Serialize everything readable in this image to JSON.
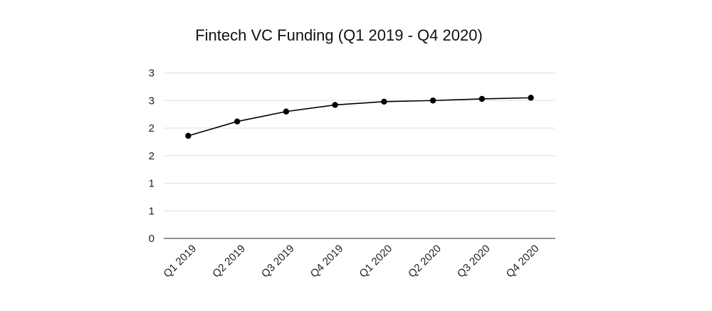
{
  "chart_data": {
    "type": "line",
    "title": "Fintech VC Funding (Q1 2019 - Q4 2020)",
    "xlabel": "",
    "ylabel": "",
    "categories": [
      "Q1 2019",
      "Q2 2019",
      "Q3 2019",
      "Q4 2019",
      "Q1 2020",
      "Q2 2020",
      "Q3 2020",
      "Q4 2020"
    ],
    "values": [
      1.86,
      2.12,
      2.3,
      2.42,
      2.48,
      2.5,
      2.53,
      2.55
    ],
    "ylim": [
      0,
      3
    ],
    "yticks": [
      0,
      0.5,
      1,
      1.5,
      2,
      2.5,
      3
    ],
    "ytick_labels": [
      "0",
      "1",
      "1",
      "2",
      "2",
      "3",
      "3"
    ],
    "grid": true,
    "colors": {
      "line": "#000000",
      "grid": "#e0e0e0"
    }
  }
}
